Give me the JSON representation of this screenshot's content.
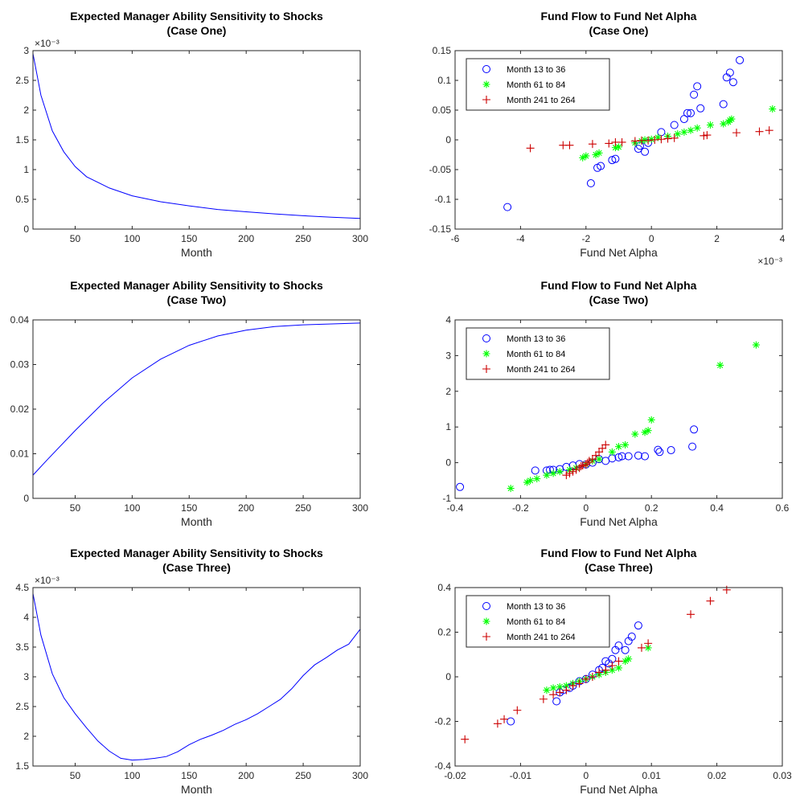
{
  "colors": {
    "line": "#0000FF",
    "month_13_36": "#0000FF",
    "month_61_84": "#00FF00",
    "month_241_264": "#CC0000"
  },
  "chart_data": [
    {
      "id": "ability-case-one",
      "type": "line",
      "title": [
        "Expected Manager Ability Sensitivity to Shocks",
        "(Case One)"
      ],
      "xlabel": "Month",
      "ylabel": "",
      "xlim": [
        13,
        300
      ],
      "ylim": [
        0,
        3
      ],
      "xticks": [
        50,
        100,
        150,
        200,
        250,
        300
      ],
      "xtick_labels": [
        "50",
        "100",
        "150",
        "200",
        "250",
        "300"
      ],
      "yticks": [
        0,
        0.5,
        1,
        1.5,
        2,
        2.5,
        3
      ],
      "ytick_labels": [
        "0",
        "0.5",
        "1",
        "1.5",
        "2",
        "2.5",
        "3"
      ],
      "exponent_label": "×10⁻³",
      "series": [
        {
          "x": [
            13,
            20,
            30,
            40,
            50,
            60,
            80,
            100,
            125,
            150,
            175,
            200,
            225,
            250,
            275,
            300
          ],
          "y": [
            2.95,
            2.25,
            1.65,
            1.3,
            1.05,
            0.88,
            0.69,
            0.56,
            0.46,
            0.39,
            0.33,
            0.29,
            0.255,
            0.225,
            0.2,
            0.18
          ]
        }
      ]
    },
    {
      "id": "flow-case-one",
      "type": "scatter",
      "title": [
        "Fund Flow to Fund Net Alpha",
        "(Case One)"
      ],
      "xlabel": "Fund Net Alpha",
      "ylabel": "",
      "xlim": [
        -6,
        4
      ],
      "ylim": [
        -0.15,
        0.15
      ],
      "xticks": [
        -6,
        -4,
        -2,
        0,
        2,
        4
      ],
      "xtick_labels": [
        "-6",
        "-4",
        "-2",
        "0",
        "2",
        "4"
      ],
      "yticks": [
        -0.15,
        -0.1,
        -0.05,
        0,
        0.05,
        0.1,
        0.15
      ],
      "ytick_labels": [
        "-0.15",
        "-0.1",
        "-0.05",
        "0",
        "0.05",
        "0.1",
        "0.15"
      ],
      "x_exponent_label": "×10⁻³",
      "legend": [
        "Month 13 to 36",
        "Month 61 to 84",
        "Month 241 to 264"
      ],
      "series": [
        {
          "name": "Month 13 to 36",
          "marker": "circle",
          "x": [
            -4.4,
            -1.85,
            -1.65,
            -1.55,
            -1.2,
            -1.1,
            -0.4,
            -0.35,
            -0.2,
            -0.1,
            0.3,
            0.7,
            1.0,
            1.1,
            1.2,
            1.3,
            1.4,
            1.5,
            2.2,
            2.3,
            2.4,
            2.5,
            2.7
          ],
          "y": [
            -0.113,
            -0.073,
            -0.047,
            -0.044,
            -0.034,
            -0.032,
            -0.015,
            -0.01,
            -0.02,
            -0.005,
            0.013,
            0.025,
            0.035,
            0.045,
            0.045,
            0.076,
            0.09,
            0.053,
            0.06,
            0.105,
            0.113,
            0.097,
            0.134
          ]
        },
        {
          "name": "Month 61 to 84",
          "marker": "star",
          "x": [
            -2.1,
            -2.0,
            -1.7,
            -1.6,
            -1.1,
            -1.0,
            -0.5,
            -0.3,
            -0.2,
            0.0,
            0.2,
            0.5,
            0.8,
            1.0,
            1.2,
            1.4,
            1.8,
            2.2,
            2.35,
            2.4,
            2.45,
            3.7
          ],
          "y": [
            -0.03,
            -0.027,
            -0.025,
            -0.022,
            -0.013,
            -0.012,
            -0.005,
            -0.002,
            0.0,
            0.001,
            0.004,
            0.006,
            0.01,
            0.013,
            0.016,
            0.02,
            0.025,
            0.027,
            0.03,
            0.033,
            0.035,
            0.052
          ]
        },
        {
          "name": "Month 241 to 264",
          "marker": "plus",
          "x": [
            -3.7,
            -2.7,
            -2.5,
            -1.8,
            -1.3,
            -1.1,
            -0.9,
            -0.5,
            -0.3,
            -0.1,
            0.1,
            0.3,
            0.5,
            0.7,
            1.6,
            1.7,
            2.6,
            3.3,
            3.6
          ],
          "y": [
            -0.014,
            -0.009,
            -0.009,
            -0.007,
            -0.006,
            -0.004,
            -0.004,
            -0.002,
            -0.001,
            -0.001,
            0.0,
            0.001,
            0.002,
            0.003,
            0.007,
            0.008,
            0.012,
            0.014,
            0.016
          ]
        }
      ]
    },
    {
      "id": "ability-case-two",
      "type": "line",
      "title": [
        "Expected Manager Ability Sensitivity to Shocks",
        "(Case Two)"
      ],
      "xlabel": "Month",
      "ylabel": "",
      "xlim": [
        13,
        300
      ],
      "ylim": [
        0,
        0.04
      ],
      "xticks": [
        50,
        100,
        150,
        200,
        250,
        300
      ],
      "xtick_labels": [
        "50",
        "100",
        "150",
        "200",
        "250",
        "300"
      ],
      "yticks": [
        0,
        0.01,
        0.02,
        0.03,
        0.04
      ],
      "ytick_labels": [
        "0",
        "0.01",
        "0.02",
        "0.03",
        "0.04"
      ],
      "series": [
        {
          "x": [
            13,
            25,
            50,
            75,
            100,
            125,
            150,
            175,
            200,
            225,
            250,
            275,
            300
          ],
          "y": [
            0.0052,
            0.0085,
            0.0152,
            0.0215,
            0.027,
            0.0312,
            0.0343,
            0.0364,
            0.0377,
            0.0385,
            0.0389,
            0.0391,
            0.0393
          ]
        }
      ]
    },
    {
      "id": "flow-case-two",
      "type": "scatter",
      "title": [
        "Fund Flow to Fund Net Alpha",
        "(Case Two)"
      ],
      "xlabel": "Fund Net Alpha",
      "ylabel": "",
      "xlim": [
        -0.4,
        0.6
      ],
      "ylim": [
        -1,
        4
      ],
      "xticks": [
        -0.4,
        -0.2,
        0,
        0.2,
        0.4,
        0.6
      ],
      "xtick_labels": [
        "-0.4",
        "-0.2",
        "0",
        "0.2",
        "0.4",
        "0.6"
      ],
      "yticks": [
        -1,
        0,
        1,
        2,
        3,
        4
      ],
      "ytick_labels": [
        "-1",
        "0",
        "1",
        "2",
        "3",
        "4"
      ],
      "legend": [
        "Month 13 to 36",
        "Month 61 to 84",
        "Month 241 to 264"
      ],
      "series": [
        {
          "name": "Month 13 to 36",
          "marker": "circle",
          "x": [
            -0.385,
            -0.155,
            -0.12,
            -0.11,
            -0.1,
            -0.08,
            -0.06,
            -0.04,
            -0.02,
            0.0,
            0.02,
            0.04,
            0.06,
            0.08,
            0.1,
            0.11,
            0.13,
            0.16,
            0.18,
            0.22,
            0.225,
            0.26,
            0.325,
            0.33
          ],
          "y": [
            -0.68,
            -0.22,
            -0.22,
            -0.2,
            -0.2,
            -0.18,
            -0.12,
            -0.08,
            -0.04,
            -0.05,
            0.0,
            0.1,
            0.05,
            0.12,
            0.15,
            0.18,
            0.18,
            0.2,
            0.18,
            0.36,
            0.3,
            0.35,
            0.45,
            0.93
          ]
        },
        {
          "name": "Month 61 to 84",
          "marker": "star",
          "x": [
            -0.23,
            -0.18,
            -0.17,
            -0.15,
            -0.12,
            -0.1,
            -0.08,
            -0.05,
            -0.03,
            0.0,
            0.02,
            0.04,
            0.08,
            0.1,
            0.12,
            0.15,
            0.18,
            0.19,
            0.2,
            0.41,
            0.52
          ],
          "y": [
            -0.72,
            -0.55,
            -0.5,
            -0.45,
            -0.35,
            -0.3,
            -0.25,
            -0.2,
            -0.15,
            -0.05,
            0.05,
            0.1,
            0.3,
            0.45,
            0.5,
            0.8,
            0.85,
            0.9,
            1.2,
            2.73,
            3.3
          ]
        },
        {
          "name": "Month 241 to 264",
          "marker": "plus",
          "x": [
            -0.06,
            -0.05,
            -0.04,
            -0.03,
            -0.02,
            -0.015,
            -0.01,
            0.0,
            0.005,
            0.01,
            0.02,
            0.03,
            0.04,
            0.05,
            0.06
          ],
          "y": [
            -0.35,
            -0.3,
            -0.25,
            -0.2,
            -0.15,
            -0.1,
            -0.08,
            -0.05,
            0.0,
            0.05,
            0.1,
            0.2,
            0.3,
            0.4,
            0.5
          ]
        }
      ]
    },
    {
      "id": "ability-case-three",
      "type": "line",
      "title": [
        "Expected Manager Ability Sensitivity to Shocks",
        "(Case Three)"
      ],
      "xlabel": "Month",
      "ylabel": "",
      "xlim": [
        13,
        300
      ],
      "ylim": [
        1.5,
        4.5
      ],
      "xticks": [
        50,
        100,
        150,
        200,
        250,
        300
      ],
      "xtick_labels": [
        "50",
        "100",
        "150",
        "200",
        "250",
        "300"
      ],
      "yticks": [
        1.5,
        2,
        2.5,
        3,
        3.5,
        4,
        4.5
      ],
      "ytick_labels": [
        "1.5",
        "2",
        "2.5",
        "3",
        "3.5",
        "4",
        "4.5"
      ],
      "exponent_label": "×10⁻³",
      "series": [
        {
          "x": [
            13,
            20,
            30,
            40,
            50,
            60,
            70,
            80,
            90,
            100,
            110,
            120,
            130,
            140,
            150,
            160,
            170,
            180,
            190,
            200,
            210,
            220,
            230,
            240,
            250,
            260,
            270,
            280,
            290,
            300
          ],
          "y": [
            4.4,
            3.7,
            3.05,
            2.65,
            2.38,
            2.14,
            1.92,
            1.75,
            1.63,
            1.6,
            1.61,
            1.63,
            1.66,
            1.74,
            1.86,
            1.95,
            2.02,
            2.1,
            2.2,
            2.28,
            2.38,
            2.5,
            2.62,
            2.8,
            3.02,
            3.2,
            3.32,
            3.45,
            3.55,
            3.8
          ]
        }
      ]
    },
    {
      "id": "flow-case-three",
      "type": "scatter",
      "title": [
        "Fund Flow to Fund Net Alpha",
        "(Case Three)"
      ],
      "xlabel": "Fund Net Alpha",
      "ylabel": "",
      "xlim": [
        -0.02,
        0.03
      ],
      "ylim": [
        -0.4,
        0.4
      ],
      "xticks": [
        -0.02,
        -0.01,
        0,
        0.01,
        0.02,
        0.03
      ],
      "xtick_labels": [
        "-0.02",
        "-0.01",
        "0",
        "0.01",
        "0.02",
        "0.03"
      ],
      "yticks": [
        -0.4,
        -0.2,
        0,
        0.2,
        0.4
      ],
      "ytick_labels": [
        "-0.4",
        "-0.2",
        "0",
        "0.2",
        "0.4"
      ],
      "legend": [
        "Month 13 to 36",
        "Month 61 to 84",
        "Month 241 to 264"
      ],
      "series": [
        {
          "name": "Month 13 to 36",
          "marker": "circle",
          "x": [
            -0.0115,
            -0.0045,
            -0.004,
            -0.0035,
            -0.0025,
            -0.002,
            -0.001,
            0.0,
            0.001,
            0.002,
            0.0025,
            0.003,
            0.0035,
            0.004,
            0.0045,
            0.005,
            0.006,
            0.0065,
            0.007,
            0.008
          ],
          "y": [
            -0.2,
            -0.11,
            -0.07,
            -0.06,
            -0.05,
            -0.04,
            -0.02,
            -0.01,
            0.01,
            0.03,
            0.04,
            0.07,
            0.06,
            0.08,
            0.12,
            0.14,
            0.12,
            0.16,
            0.18,
            0.23
          ]
        },
        {
          "name": "Month 61 to 84",
          "marker": "star",
          "x": [
            -0.006,
            -0.005,
            -0.004,
            -0.003,
            -0.002,
            -0.001,
            0.0,
            0.001,
            0.002,
            0.003,
            0.004,
            0.005,
            0.006,
            0.0065,
            0.0095
          ],
          "y": [
            -0.06,
            -0.05,
            -0.045,
            -0.04,
            -0.03,
            -0.02,
            -0.01,
            0.0,
            0.01,
            0.02,
            0.03,
            0.04,
            0.07,
            0.08,
            0.13
          ]
        },
        {
          "name": "Month 241 to 264",
          "marker": "plus",
          "x": [
            -0.0185,
            -0.0135,
            -0.0125,
            -0.0105,
            -0.0065,
            -0.005,
            -0.004,
            -0.003,
            -0.002,
            -0.001,
            0.0,
            0.001,
            0.002,
            0.003,
            0.004,
            0.005,
            0.0085,
            0.0095,
            0.016,
            0.019,
            0.0215
          ],
          "y": [
            -0.28,
            -0.21,
            -0.19,
            -0.15,
            -0.1,
            -0.08,
            -0.07,
            -0.06,
            -0.04,
            -0.03,
            -0.01,
            0.0,
            0.02,
            0.03,
            0.05,
            0.07,
            0.13,
            0.15,
            0.28,
            0.34,
            0.39
          ]
        }
      ]
    }
  ]
}
